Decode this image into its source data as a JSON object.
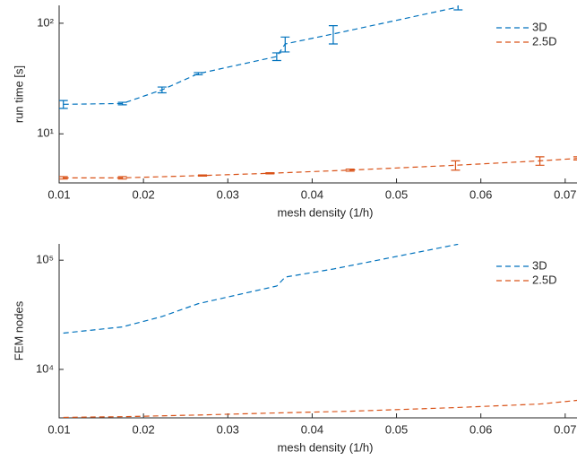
{
  "chart_data": [
    {
      "type": "line",
      "xlabel": "mesh density (1/h)",
      "ylabel": "run time [s]",
      "log_y": true,
      "legend": "northeast",
      "xlim": [
        0.01,
        0.0714
      ],
      "ylim": [
        3.6,
        145
      ],
      "xticks": [
        0.01,
        0.02,
        0.03,
        0.04,
        0.05,
        0.06,
        0.07
      ],
      "yticks": [
        {
          "value": 10,
          "label": "10¹"
        },
        {
          "value": 100,
          "label": "10²"
        }
      ],
      "series": [
        {
          "name": "3D",
          "color": "#0072bd",
          "x": [
            0.0105,
            0.0175,
            0.0222,
            0.0265,
            0.0358,
            0.0368,
            0.0425,
            0.0573
          ],
          "values": [
            18.5,
            18.8,
            25,
            35,
            50,
            65,
            80,
            140
          ],
          "errors": [
            1.5,
            0.5,
            1.5,
            0.8,
            4,
            10,
            15,
            8
          ]
        },
        {
          "name": "2.5D",
          "color": "#d95319",
          "x": [
            0.0105,
            0.0175,
            0.027,
            0.035,
            0.0445,
            0.057,
            0.067,
            0.0715
          ],
          "values": [
            4.0,
            4.0,
            4.2,
            4.4,
            4.7,
            5.2,
            5.7,
            6.0
          ],
          "errors": [
            0.1,
            0.1,
            0.05,
            0.05,
            0.1,
            0.5,
            0.5,
            0.2
          ]
        }
      ]
    },
    {
      "type": "line",
      "xlabel": "mesh density (1/h)",
      "ylabel": "FEM nodes",
      "log_y": true,
      "legend": "northeast",
      "xlim": [
        0.01,
        0.0714
      ],
      "ylim": [
        3600,
        141000
      ],
      "xticks": [
        0.01,
        0.02,
        0.03,
        0.04,
        0.05,
        0.06,
        0.07
      ],
      "yticks": [
        {
          "value": 10000,
          "label": "10⁴"
        },
        {
          "value": 100000,
          "label": "10⁵"
        }
      ],
      "series": [
        {
          "name": "3D",
          "color": "#0072bd",
          "x": [
            0.0105,
            0.0175,
            0.0222,
            0.0265,
            0.0358,
            0.0368,
            0.0425,
            0.0573
          ],
          "values": [
            21500,
            24500,
            30500,
            40000,
            58000,
            70000,
            83000,
            140000
          ]
        },
        {
          "name": "2.5D",
          "color": "#d95319",
          "x": [
            0.0105,
            0.0175,
            0.027,
            0.035,
            0.0445,
            0.057,
            0.067,
            0.0715
          ],
          "values": [
            3640,
            3690,
            3830,
            3980,
            4140,
            4470,
            4820,
            5210
          ]
        }
      ]
    }
  ]
}
